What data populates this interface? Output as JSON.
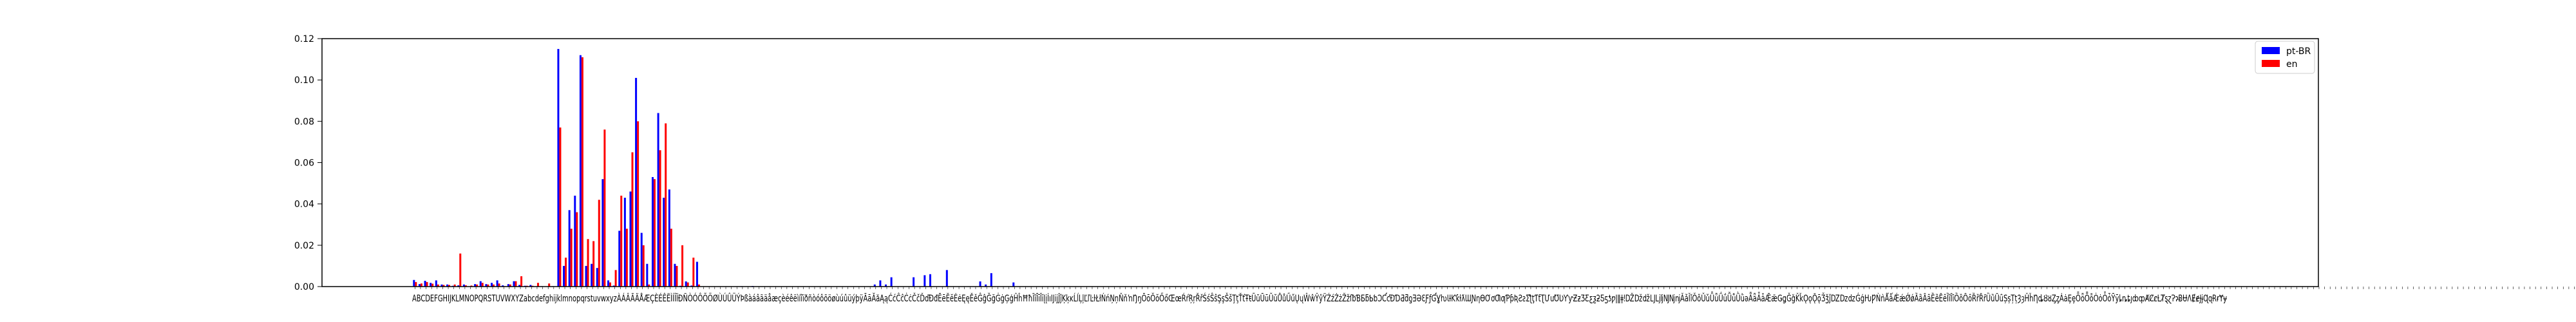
{
  "chart_data": {
    "type": "bar",
    "ylim": [
      0,
      0.12
    ],
    "yticks": [
      "0.00",
      "0.02",
      "0.04",
      "0.06",
      "0.08",
      "0.10",
      "0.12"
    ],
    "legend": {
      "placement": "top-right"
    },
    "grid": false,
    "x_tick_text": "ABCDEFGHIJKLMNOPQRSTUVWXYZabcdefghijklmnopqrstuvwxyzÀÁÂÃÄÅÆÇÈÉÊËÌÍÎÏÐÑÒÓÔÕÖØÙÚÛÜÝÞßàáâãäåæçèéêëìíîïðñòóôõöøùúûüýþÿĀāĂăĄąĆćĈĉĊċČčĎďĐđĒēĔĕĖėĘęĚěĜĝĞğĠġĢģĤĥĦħĨĩĪīĬĭĮįİıĲĳĴĵĶķĸĹĺĻļĽľĿŀŁłŃńŅņŇňŉŊŋŌōŎŏŐőŒœŔŕŖŗŘřŚśŜŝŞşŠšŢţŤťŦŧŨũŪūŬŭŮůŰűŲųŴŵŶŷŸŹźŻżŽžſƀƁƂƃƄƅƆƇƈƉƊƋƌƍƎƏƐƑƒƓƔƕƖƗƘƙƚƛƜƝƞƟƠơƢƣƤƥƦƧƨƩƪƫƬƭƮƯưƱƲƳƴƵƶƷƸƹƺƻƼƽƾƿǀǁǂǃǄǅǆǇǈǉǊǋǌǍǎǏǐǑǒǓǔǕǖǗǘǙǚǛǜǝǞǟǠǡǢǣǤǥǦǧǨǩǪǫǬǭǮǯǰǱǲǳǴǵǶǷǸǹǺǻǼǽǾǿȀȁȂȃȄȅȆȇȈȉȊȋȌȍȎȏȐȑȒȓȔȕȖȗȘșȚțȜȝȞȟȠȡȢȣȤȥȦȧȨȩȪȫȬȭȮȯȰȱȲȳȴȵȶȷȸȹȺȻȼȽȾȿɀɁɂɃɄɅɆɇɈɉɊɋɌɍɎɏ",
    "series": [
      {
        "name": "pt-BR",
        "color": "#0000ff",
        "values": {
          "A": 0.0032,
          "B": 0.0012,
          "C": 0.0028,
          "D": 0.0018,
          "E": 0.003,
          "F": 0.001,
          "G": 0.001,
          "H": 0.0004,
          "I": 0.0006,
          "J": 0.001,
          "K": 0.0001,
          "L": 0.0012,
          "M": 0.0026,
          "N": 0.0012,
          "O": 0.0018,
          "P": 0.003,
          "Q": 0.0006,
          "R": 0.0012,
          "S": 0.0026,
          "T": 0.0008,
          "U": 0.0004,
          "V": 0.0008,
          "W": 0.0001,
          "X": 0.0002,
          "Y": 0.0001,
          "Z": 0.0002,
          "a": 0.115,
          "b": 0.01,
          "c": 0.037,
          "d": 0.044,
          "e": 0.112,
          "f": 0.01,
          "g": 0.011,
          "h": 0.009,
          "i": 0.052,
          "j": 0.003,
          "k": 0.0005,
          "l": 0.027,
          "m": 0.043,
          "n": 0.046,
          "o": 0.101,
          "p": 0.026,
          "q": 0.011,
          "r": 0.053,
          "s": 0.084,
          "t": 0.043,
          "u": 0.047,
          "v": 0.011,
          "w": 0.0004,
          "x": 0.0025,
          "y": 0.0005,
          "z": 0.012,
          "Ç": 0.0002,
          "É": 0.0003,
          "Ê": 0.0001,
          "Ó": 0.0001,
          "à": 0.001,
          "á": 0.003,
          "â": 0.001,
          "ã": 0.0045,
          "ç": 0.0045,
          "é": 0.0055,
          "ê": 0.006,
          "í": 0.008,
          "ó": 0.0025,
          "ô": 0.001,
          "õ": 0.0065,
          "ú": 0.002
        }
      },
      {
        "name": "en",
        "color": "#ff0000",
        "values": {
          "A": 0.0022,
          "B": 0.0015,
          "C": 0.0022,
          "D": 0.0014,
          "E": 0.001,
          "F": 0.0008,
          "G": 0.0008,
          "H": 0.001,
          "I": 0.016,
          "J": 0.0006,
          "K": 0.0005,
          "L": 0.001,
          "M": 0.0018,
          "N": 0.001,
          "O": 0.001,
          "P": 0.0015,
          "Q": 0.0002,
          "R": 0.001,
          "S": 0.0026,
          "T": 0.005,
          "U": 0.0004,
          "V": 0.0004,
          "W": 0.0018,
          "X": 0.0001,
          "Y": 0.0015,
          "Z": 0.0001,
          "a": 0.077,
          "b": 0.014,
          "c": 0.028,
          "d": 0.036,
          "e": 0.111,
          "f": 0.023,
          "g": 0.022,
          "h": 0.042,
          "i": 0.076,
          "j": 0.002,
          "k": 0.008,
          "l": 0.044,
          "m": 0.028,
          "n": 0.065,
          "o": 0.08,
          "p": 0.02,
          "q": 0.001,
          "r": 0.052,
          "s": 0.066,
          "t": 0.079,
          "u": 0.028,
          "v": 0.01,
          "w": 0.02,
          "x": 0.002,
          "y": 0.014,
          "z": 0.001
        }
      }
    ]
  }
}
